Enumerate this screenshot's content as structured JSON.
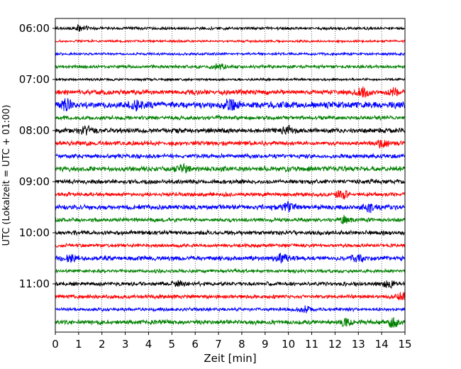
{
  "chart_data": {
    "type": "line",
    "title": "",
    "xlabel": "Zeit  [min]",
    "ylabel": "UTC (Lokalzeit = UTC + 01:00)",
    "xlim": [
      0,
      15
    ],
    "x_ticks": [
      0,
      1,
      2,
      3,
      4,
      5,
      6,
      7,
      8,
      9,
      10,
      11,
      12,
      13,
      14,
      15
    ],
    "x_tick_labels": [
      "0",
      "1",
      "2",
      "3",
      "4",
      "5",
      "6",
      "7",
      "8",
      "9",
      "10",
      "11",
      "12",
      "13",
      "14",
      "15"
    ],
    "y_tick_labels": [
      "06:00",
      "07:00",
      "08:00",
      "09:00",
      "10:00",
      "11:00"
    ],
    "y_tick_rows": [
      0,
      4,
      8,
      12,
      16,
      20
    ],
    "row_interval_minutes": 15,
    "row_count": 24,
    "row_start_labels": [
      "06:00",
      "06:15",
      "06:30",
      "06:45",
      "07:00",
      "07:15",
      "07:30",
      "07:45",
      "08:00",
      "08:15",
      "08:30",
      "08:45",
      "09:00",
      "09:15",
      "09:30",
      "09:45",
      "10:00",
      "10:15",
      "10:30",
      "10:45",
      "11:00",
      "11:15",
      "11:30",
      "11:45"
    ],
    "row_colors": [
      "#000000",
      "#ff0000",
      "#0000ff",
      "#008000"
    ],
    "grid": {
      "x": true,
      "y": false,
      "style": "dotted"
    },
    "row_amplitude": [
      0.25,
      0.2,
      0.22,
      0.28,
      0.22,
      0.45,
      0.6,
      0.35,
      0.45,
      0.4,
      0.38,
      0.45,
      0.4,
      0.35,
      0.45,
      0.35,
      0.38,
      0.32,
      0.42,
      0.3,
      0.35,
      0.35,
      0.3,
      0.4
    ],
    "bursts": [
      {
        "row": 0,
        "t": 1.1,
        "amp": 0.6
      },
      {
        "row": 3,
        "t": 7.0,
        "amp": 0.6
      },
      {
        "row": 5,
        "t": 13.2,
        "amp": 0.9
      },
      {
        "row": 5,
        "t": 14.5,
        "amp": 0.9
      },
      {
        "row": 6,
        "t": 0.5,
        "amp": 0.9
      },
      {
        "row": 6,
        "t": 3.5,
        "amp": 0.9
      },
      {
        "row": 6,
        "t": 7.5,
        "amp": 0.9
      },
      {
        "row": 8,
        "t": 1.4,
        "amp": 0.9
      },
      {
        "row": 8,
        "t": 10.0,
        "amp": 0.8
      },
      {
        "row": 9,
        "t": 14.0,
        "amp": 0.8
      },
      {
        "row": 11,
        "t": 5.5,
        "amp": 0.7
      },
      {
        "row": 13,
        "t": 12.3,
        "amp": 0.8
      },
      {
        "row": 14,
        "t": 10.0,
        "amp": 0.8
      },
      {
        "row": 14,
        "t": 13.5,
        "amp": 0.9
      },
      {
        "row": 15,
        "t": 12.4,
        "amp": 0.7
      },
      {
        "row": 18,
        "t": 0.6,
        "amp": 0.7
      },
      {
        "row": 18,
        "t": 9.7,
        "amp": 0.8
      },
      {
        "row": 18,
        "t": 13.0,
        "amp": 0.9
      },
      {
        "row": 20,
        "t": 5.3,
        "amp": 0.6
      },
      {
        "row": 20,
        "t": 14.3,
        "amp": 0.6
      },
      {
        "row": 21,
        "t": 14.9,
        "amp": 0.7
      },
      {
        "row": 22,
        "t": 10.7,
        "amp": 0.6
      },
      {
        "row": 23,
        "t": 12.5,
        "amp": 0.7
      },
      {
        "row": 23,
        "t": 14.5,
        "amp": 1.0
      }
    ]
  }
}
